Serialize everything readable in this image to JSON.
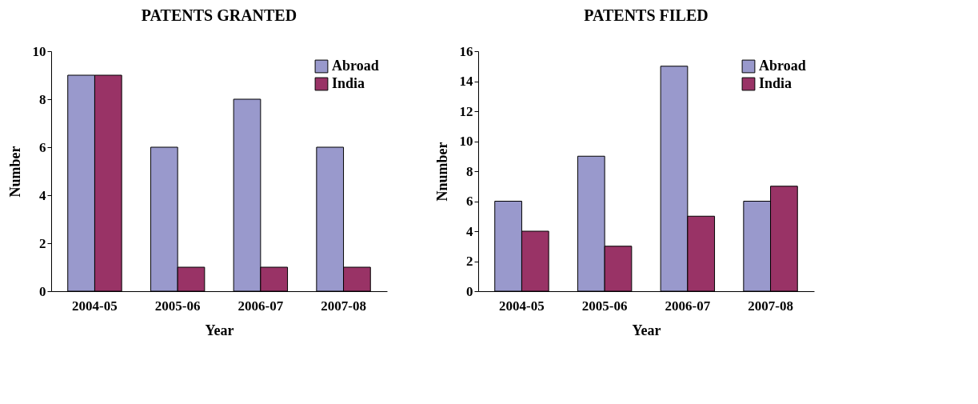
{
  "chart_data": [
    {
      "type": "bar",
      "title": "PATENTS GRANTED",
      "xlabel": "Year",
      "ylabel": "Number",
      "categories": [
        "2004-05",
        "2005-06",
        "2006-07",
        "2007-08"
      ],
      "series": [
        {
          "name": "Abroad",
          "color": "#9999cc",
          "values": [
            9,
            6,
            8,
            6
          ]
        },
        {
          "name": "India",
          "color": "#993366",
          "values": [
            9,
            1,
            1,
            1
          ]
        }
      ],
      "ylim": [
        0,
        10
      ],
      "yticks": [
        0,
        2,
        4,
        6,
        8,
        10
      ],
      "grid": false,
      "legend": "top right"
    },
    {
      "type": "bar",
      "title": "PATENTS FILED",
      "xlabel": "Year",
      "ylabel": "Nnumber",
      "categories": [
        "2004-05",
        "2005-06",
        "2006-07",
        "2007-08"
      ],
      "series": [
        {
          "name": "Abroad",
          "color": "#9999cc",
          "values": [
            6,
            9,
            15,
            6
          ]
        },
        {
          "name": "India",
          "color": "#993366",
          "values": [
            4,
            3,
            5,
            7
          ]
        }
      ],
      "ylim": [
        0,
        16
      ],
      "yticks": [
        0,
        2,
        4,
        6,
        8,
        10,
        12,
        14,
        16
      ],
      "grid": false,
      "legend": "top right"
    }
  ]
}
